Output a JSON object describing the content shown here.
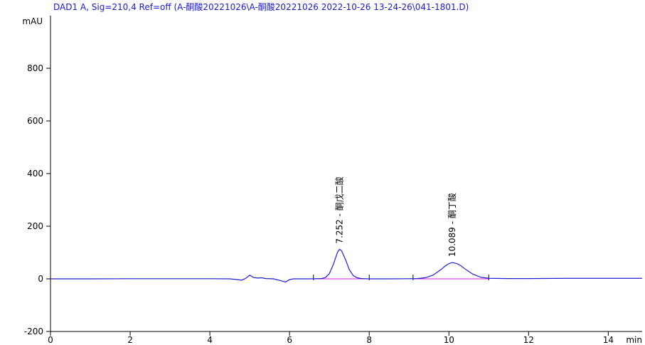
{
  "chart_data": {
    "type": "line",
    "title": "DAD1 A, Sig=210,4 Ref=off (A-酮酸20221026\\A-酮酸20221026 2022-10-26 13-24-26\\041-1801.D)",
    "y_label": "mAU",
    "x_label": "min",
    "x": [
      0,
      1,
      2,
      3,
      4,
      4.5,
      4.7,
      4.8,
      4.9,
      5.0,
      5.1,
      5.2,
      5.3,
      5.4,
      5.6,
      5.8,
      5.9,
      6.0,
      6.1,
      6.5,
      6.8,
      6.9,
      7.0,
      7.1,
      7.2,
      7.252,
      7.3,
      7.4,
      7.5,
      7.6,
      7.7,
      7.8,
      8.0,
      8.5,
      9.0,
      9.2,
      9.4,
      9.6,
      9.8,
      9.9,
      10.0,
      10.089,
      10.2,
      10.3,
      10.4,
      10.6,
      10.8,
      11.0,
      11.5,
      12,
      13,
      14,
      14.85
    ],
    "series": [
      {
        "color": "#1f1fd6",
        "values": [
          0,
          0,
          0.5,
          0.5,
          0.5,
          0,
          -3,
          -5,
          2,
          14,
          5,
          3,
          4,
          1,
          0,
          -8,
          -12,
          -3,
          0,
          0,
          1,
          5,
          20,
          55,
          100,
          112,
          108,
          75,
          35,
          12,
          4,
          1,
          0,
          0,
          0.5,
          1,
          4,
          14,
          35,
          48,
          58,
          62,
          58,
          50,
          38,
          18,
          6,
          2,
          1,
          1,
          2,
          2,
          2
        ]
      }
    ],
    "integration_baselines": [
      [
        6.6,
        8.0
      ],
      [
        9.1,
        11.0
      ]
    ],
    "baseline_color": "#e020e0",
    "annotations": [
      {
        "x": 7.252,
        "y": 112,
        "text": "7.252 - 酮戊二酸"
      },
      {
        "x": 10.089,
        "y": 62,
        "text": "10.089 - 酮丁酸"
      }
    ],
    "xlim": [
      0,
      14.85
    ],
    "xticks": [
      0,
      2,
      4,
      6,
      8,
      10,
      12,
      14
    ],
    "ylim": [
      -200,
      1000
    ],
    "yticks": [
      -200,
      0,
      200,
      400,
      600,
      800
    ]
  }
}
